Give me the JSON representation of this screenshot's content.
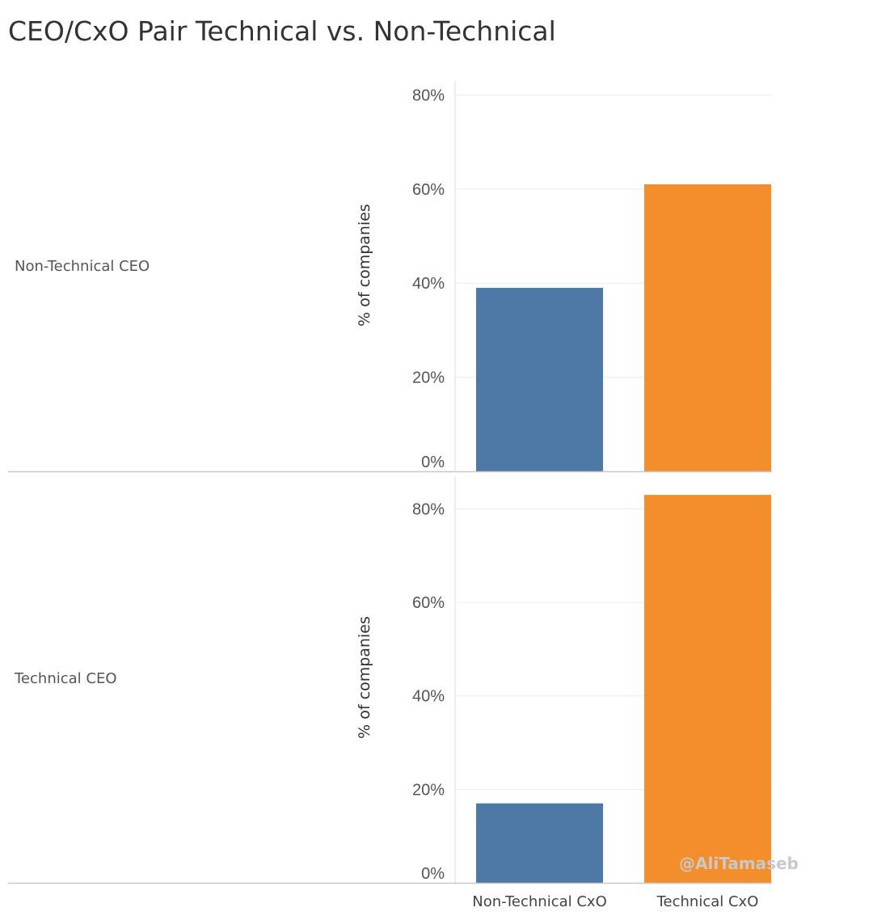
{
  "title": "CEO/CxO Pair Technical vs. Non-Technical",
  "watermark": "@AliTamaseb",
  "chart_data": {
    "type": "bar",
    "title": "CEO/CxO Pair Technical vs. Non-Technical",
    "ylabel": "% of companies",
    "categories": [
      "Non-Technical CxO",
      "Technical CxO"
    ],
    "colors": [
      "#4e79a7",
      "#f28e2b"
    ],
    "grid": true,
    "panels": [
      {
        "row_label": "Non-Technical CEO",
        "values": [
          39,
          61
        ],
        "ylim": [
          0,
          83
        ],
        "yticks": [
          0,
          20,
          40,
          60,
          80
        ],
        "ytick_labels": [
          "0%",
          "20%",
          "40%",
          "60%",
          "80%"
        ]
      },
      {
        "row_label": "Technical CEO",
        "values": [
          17,
          83
        ],
        "ylim": [
          0,
          87
        ],
        "yticks": [
          0,
          20,
          40,
          60,
          80
        ],
        "ytick_labels": [
          "0%",
          "20%",
          "40%",
          "60%",
          "80%"
        ]
      }
    ]
  }
}
